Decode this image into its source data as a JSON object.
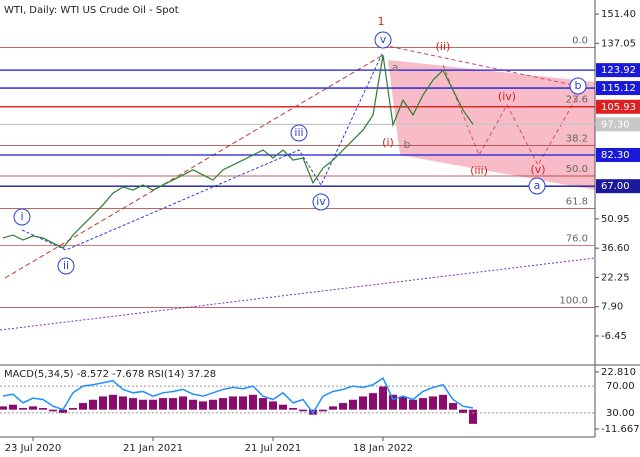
{
  "chart_data": [
    {
      "type": "line",
      "title": "WTI, Daily:  WTI US Crude Oil - Spot",
      "categories": [
        null,
        null,
        null,
        "23 Jul 2020",
        null,
        null,
        null,
        null,
        null,
        null,
        null,
        null,
        null,
        null,
        null,
        "21 Jan 2021",
        null,
        null,
        null,
        null,
        null,
        null,
        null,
        null,
        null,
        null,
        null,
        "21 Jul 2021",
        null,
        null,
        null,
        null,
        null,
        null,
        null,
        null,
        null,
        null,
        "18 Jan 2022",
        null,
        null,
        null,
        null,
        null,
        null,
        null,
        null,
        null
      ],
      "values": [
        41.6,
        43,
        40.6,
        42.6,
        41.6,
        39.1,
        36.7,
        43,
        48,
        52.9,
        57.8,
        63.6,
        66.6,
        65.1,
        67.6,
        65.1,
        67.6,
        70,
        72.5,
        75,
        72.5,
        70,
        75,
        77.4,
        79.8,
        82.3,
        84.7,
        80.8,
        84.7,
        79.8,
        80.8,
        68.6,
        75.9,
        79.8,
        84.7,
        89.6,
        94.5,
        101.9,
        131.3,
        97,
        109.2,
        101.9,
        111.7,
        119,
        123.9,
        114.1,
        104.3,
        97.3
      ],
      "color": "#2e7d32",
      "ylim": [
        -20.7,
        158.3
      ],
      "yticks": [
        {
          "value": 151.4,
          "label": "151.40"
        },
        {
          "value": 137.05,
          "label": "137.05"
        },
        {
          "value": 50.95,
          "label": "50.95"
        },
        {
          "value": 36.6,
          "label": "36.60"
        },
        {
          "value": 22.25,
          "label": "22.25"
        },
        {
          "value": 7.9,
          "label": "7.90"
        },
        {
          "value": -6.45,
          "label": "-6.45"
        }
      ],
      "levels": [
        {
          "value": 123.92,
          "label": "123.92",
          "color": "#1a1adc"
        },
        {
          "value": 115.12,
          "label": "115.12",
          "color": "#1a1adc"
        },
        {
          "value": 105.93,
          "label": "105.93",
          "color": "#e02020"
        },
        {
          "value": 97.3,
          "label": "97.30",
          "color": "#c8c8c8"
        },
        {
          "value": 82.3,
          "label": "82.30",
          "color": "#1a1adc"
        },
        {
          "value": 67,
          "label": "67.00",
          "color": "#1a1a9c"
        }
      ],
      "fib": [
        {
          "value": 135,
          "label": "0.0"
        },
        {
          "value": 106,
          "label": "23.6"
        },
        {
          "value": 87,
          "label": "38.2"
        },
        {
          "value": 72,
          "label": "50.0"
        },
        {
          "value": 56,
          "label": "61.8"
        },
        {
          "value": 38,
          "label": "76.0"
        },
        {
          "value": 7.5,
          "label": "100.0"
        }
      ],
      "annotations": [
        "1",
        "v",
        "iii",
        "iv",
        "i",
        "ii",
        "(ii)",
        "(iv)",
        "(i)",
        "(iii)",
        "(v)",
        "a",
        "b",
        "a",
        "b"
      ]
    },
    {
      "type": "bar",
      "title": "MACD(5,34,5) -8.572 -7.678 RSI(14) 37.28",
      "values": [
        2,
        3,
        1,
        2,
        1,
        -1,
        -2,
        1,
        4,
        6,
        8,
        9,
        8,
        7,
        6,
        6,
        7,
        7,
        8,
        6,
        5,
        6,
        7,
        8,
        8,
        9,
        7,
        5,
        3,
        1,
        -1,
        -3,
        -1,
        2,
        4,
        6,
        8,
        10,
        14,
        9,
        8,
        6,
        7,
        8,
        9,
        4,
        -2,
        -8.572
      ],
      "color": "#8b0a6e",
      "ylim": [
        -14.1,
        26.4
      ],
      "yticks": [
        {
          "value": 22.81,
          "label": "22.810"
        },
        {
          "value": -11.667,
          "label": "-11.667"
        }
      ],
      "series": [
        {
          "axis": "y2",
          "color": "#1e90ff",
          "values": [
            55,
            58,
            45,
            52,
            50,
            40,
            35,
            60,
            70,
            72,
            75,
            78,
            65,
            60,
            62,
            55,
            60,
            62,
            65,
            58,
            55,
            60,
            65,
            68,
            66,
            70,
            55,
            50,
            60,
            45,
            50,
            30,
            55,
            62,
            65,
            70,
            68,
            72,
            82,
            50,
            55,
            50,
            62,
            68,
            72,
            50,
            40,
            37.28
          ]
        }
      ],
      "y2lim": [
        0,
        100
      ],
      "y2ticks": [
        {
          "value": 70,
          "label": "70.00"
        },
        {
          "value": 30,
          "label": "30.00"
        }
      ]
    }
  ]
}
